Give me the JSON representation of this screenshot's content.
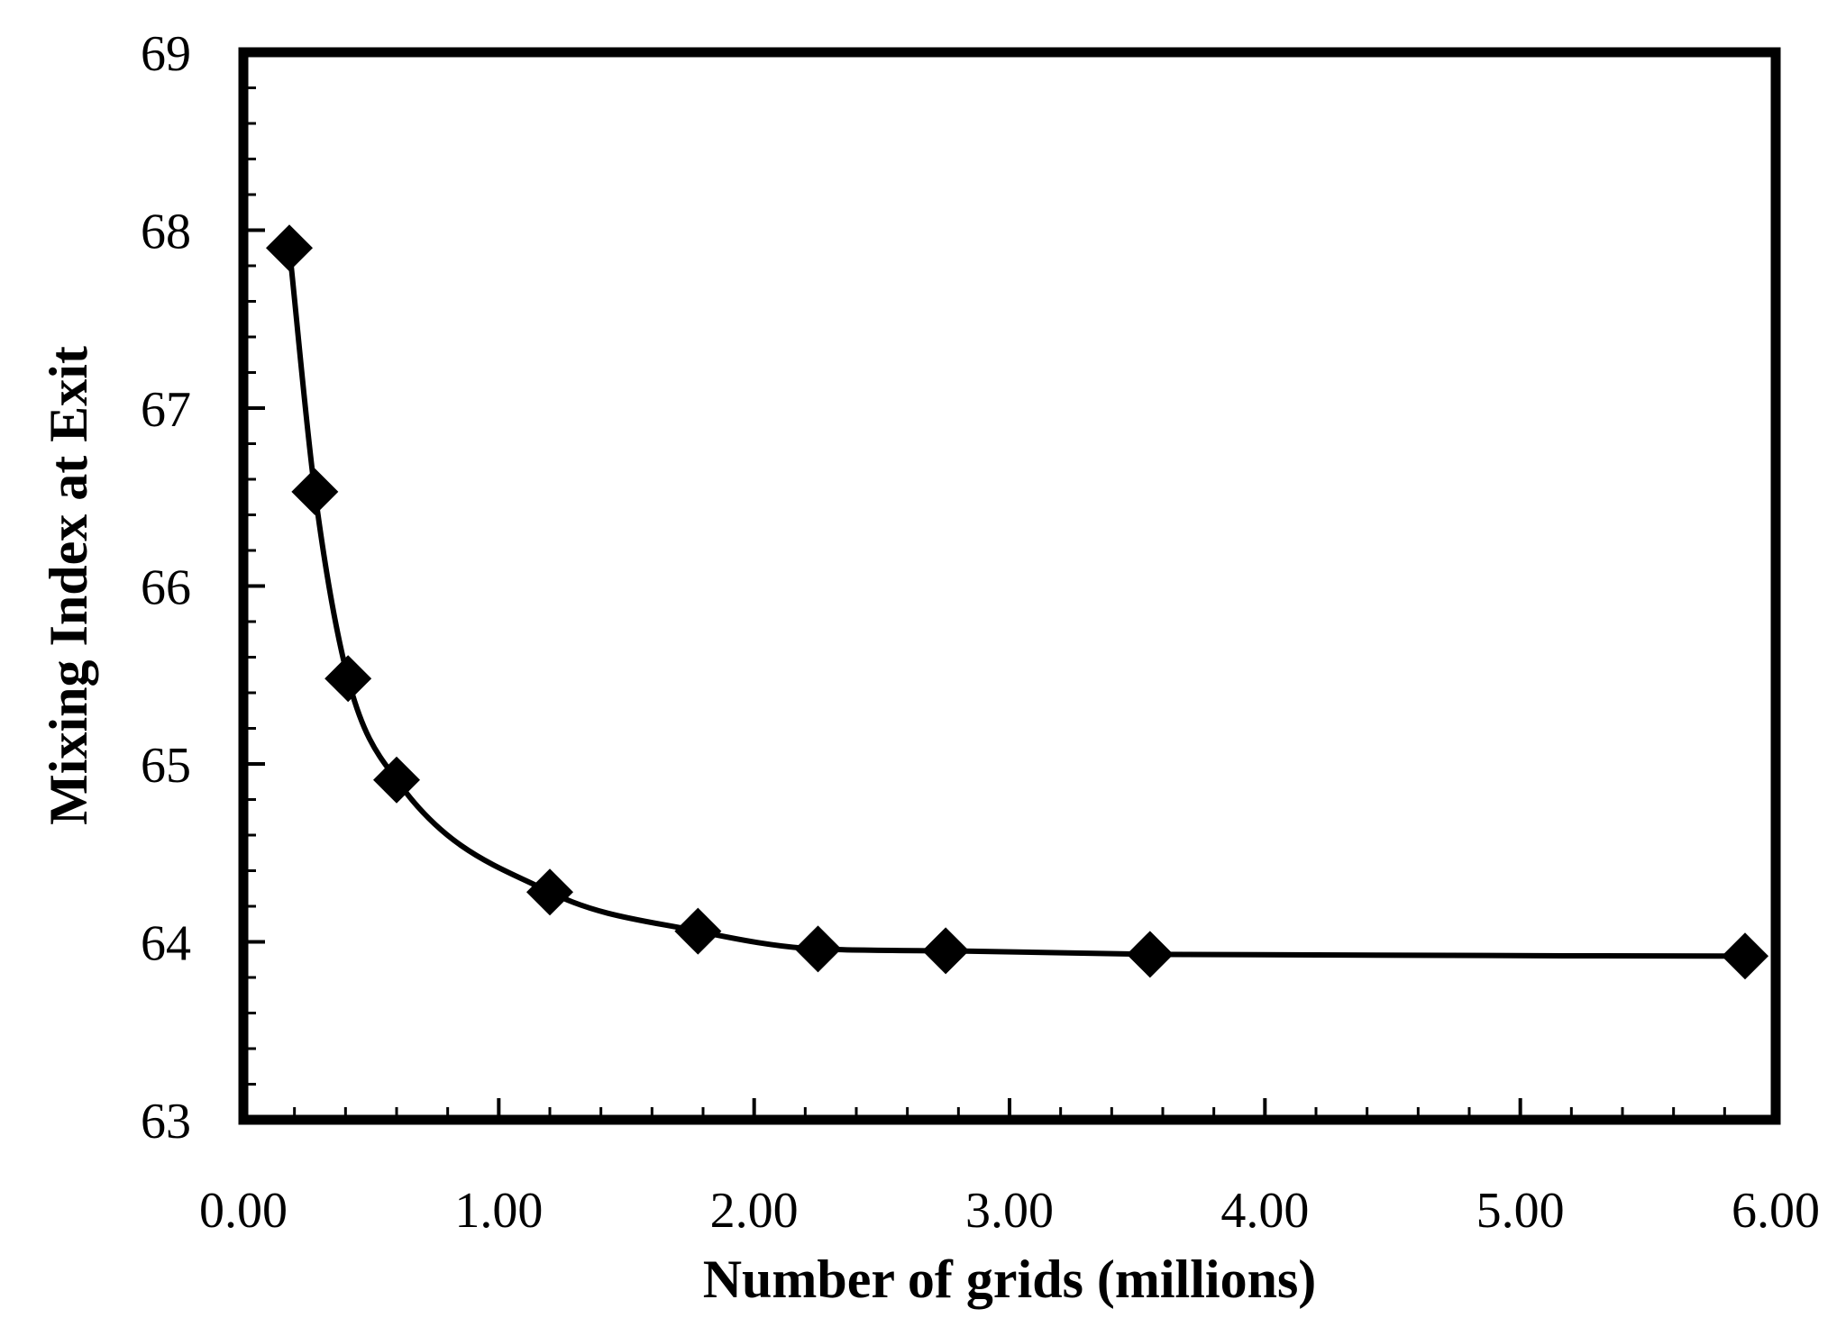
{
  "chart_data": {
    "type": "line",
    "title": "",
    "xlabel": "Number of grids (millions)",
    "ylabel": "Mixing Index at Exit",
    "xlim": [
      0,
      6
    ],
    "ylim": [
      63,
      69
    ],
    "x_ticks": [
      "0.00",
      "1.00",
      "2.00",
      "3.00",
      "4.00",
      "5.00",
      "6.00"
    ],
    "y_ticks": [
      "63",
      "64",
      "65",
      "66",
      "67",
      "68",
      "69"
    ],
    "grid": false,
    "legend": "none",
    "series": [
      {
        "marker": "diamond",
        "color": "#000000",
        "x": [
          0.18,
          0.28,
          0.41,
          0.6,
          1.2,
          1.78,
          2.25,
          2.75,
          3.55,
          5.88
        ],
        "y": [
          67.9,
          66.53,
          65.48,
          64.91,
          64.28,
          64.06,
          63.96,
          63.95,
          63.93,
          63.92
        ]
      }
    ]
  }
}
